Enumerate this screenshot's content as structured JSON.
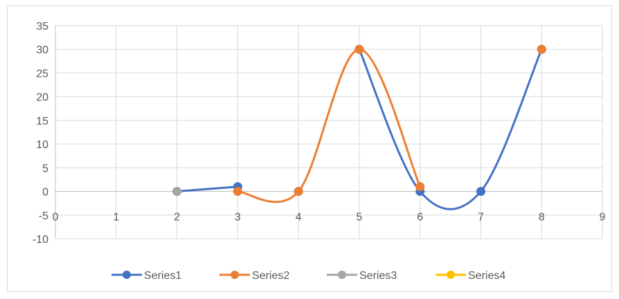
{
  "chart_data": {
    "type": "scatter",
    "title": "",
    "xlabel": "",
    "ylabel": "",
    "xlim": [
      0,
      9
    ],
    "ylim": [
      -10,
      35
    ],
    "x_ticks": [
      0,
      1,
      2,
      3,
      4,
      5,
      6,
      7,
      8,
      9
    ],
    "y_ticks": [
      35,
      30,
      25,
      20,
      15,
      10,
      5,
      0,
      -5,
      -10
    ],
    "grid": true,
    "smooth_lines": true,
    "legend_position": "bottom",
    "series": [
      {
        "name": "Series1",
        "color": "#4472c4",
        "points": [
          [
            2,
            0
          ],
          [
            3,
            1
          ],
          [
            4,
            0
          ],
          [
            5,
            30
          ],
          [
            6,
            0
          ],
          [
            7,
            0
          ],
          [
            8,
            30
          ]
        ],
        "segments": [
          [
            [
              2,
              0
            ],
            [
              3,
              1
            ]
          ],
          [
            [
              5,
              30
            ],
            [
              6,
              0
            ],
            [
              7,
              0
            ],
            [
              8,
              30
            ]
          ]
        ]
      },
      {
        "name": "Series2",
        "color": "#ed7d31",
        "points": [
          [
            3,
            0
          ],
          [
            4,
            0
          ],
          [
            5,
            30
          ],
          [
            6,
            1
          ],
          [
            8,
            30
          ]
        ],
        "segments": [
          [
            [
              3,
              0
            ],
            [
              4,
              0
            ],
            [
              5,
              30
            ],
            [
              6,
              1
            ]
          ]
        ]
      },
      {
        "name": "Series3",
        "color": "#a5a5a5",
        "points": [
          [
            2,
            0
          ]
        ],
        "segments": []
      },
      {
        "name": "Series4",
        "color": "#ffc000",
        "points": [],
        "segments": []
      }
    ]
  }
}
